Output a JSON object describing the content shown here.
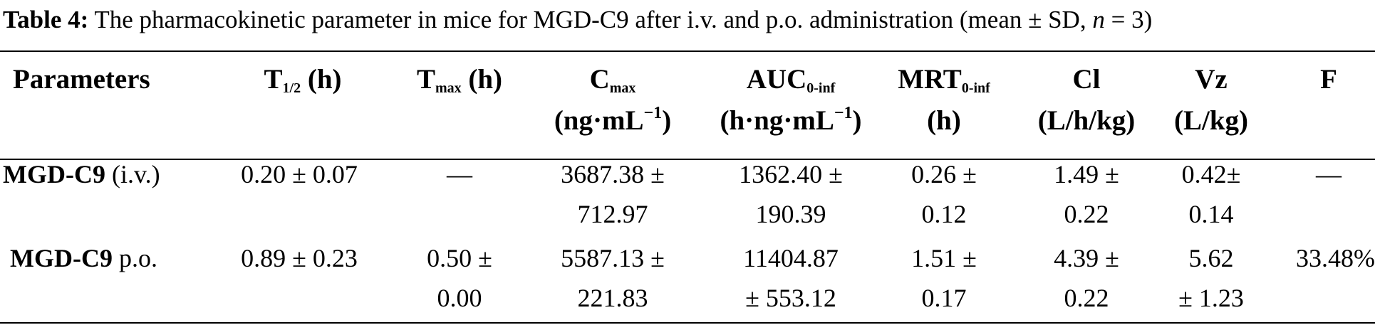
{
  "caption": {
    "label": "Table 4:",
    "text_before_n": "The pharmacokinetic parameter in mice for MGD-C9 after i.v. and p.o. administration (mean ± SD, ",
    "n_symbol": "n",
    "text_after_n": " = 3)"
  },
  "headers": {
    "parameters": "Parameters",
    "t_half": {
      "base": "T",
      "sub": "1/2",
      "unit": " (h)"
    },
    "t_max": {
      "base": "T",
      "sub": "max",
      "unit": " (h)"
    },
    "c_max": {
      "base": "C",
      "sub": "max",
      "unit_pre": "(ng·mL",
      "unit_sup": "−1",
      "unit_post": ")"
    },
    "auc": {
      "base": "AUC",
      "sub": "0-inf",
      "unit_pre": "(h·ng·mL",
      "unit_sup": "−1",
      "unit_post": ")"
    },
    "mrt": {
      "base": "MRT",
      "sub": "0-inf",
      "unit": "(h)"
    },
    "cl": {
      "name": "Cl",
      "unit": "(L/h/kg)"
    },
    "vz": {
      "name": "Vz",
      "unit": "(L/kg)"
    },
    "f": "F"
  },
  "rows": [
    {
      "name": "MGD-C9",
      "route": " (i.v.)",
      "t_half": "0.20 ± 0.07",
      "t_max": "—",
      "c_max": "3687.38 ±\n712.97",
      "auc": "1362.40 ±\n190.39",
      "mrt": "0.26 ±\n0.12",
      "cl": "1.49 ±\n0.22",
      "vz": "0.42±\n0.14",
      "f": "—"
    },
    {
      "name": "MGD-C9",
      "route": " p.o.",
      "t_half": "0.89 ± 0.23",
      "t_max": "0.50 ±\n0.00",
      "c_max": "5587.13 ±\n221.83",
      "auc": "11404.87\n± 553.12",
      "mrt": "1.51 ±\n0.17",
      "cl": "4.39 ±\n0.22",
      "vz": "5.62\n± 1.23",
      "f": "33.48%"
    }
  ]
}
